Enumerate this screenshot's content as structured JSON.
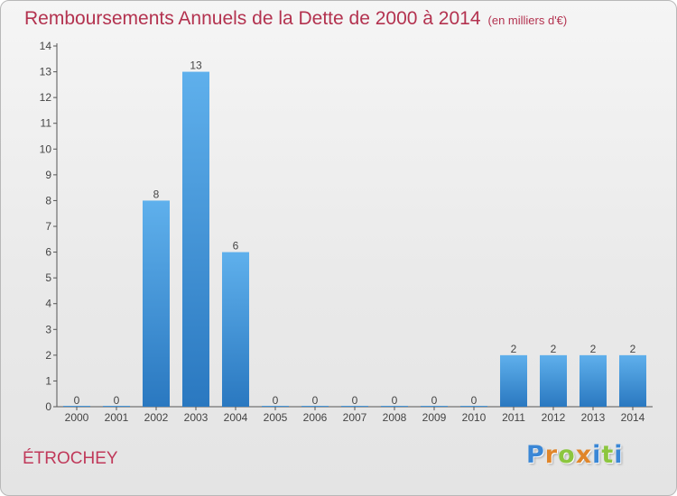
{
  "chart_data": {
    "type": "bar",
    "title": "Remboursements Annuels de la Dette de 2000 à 2014",
    "subtitle": "(en milliers d'€)",
    "categories": [
      "2000",
      "2001",
      "2002",
      "2003",
      "2004",
      "2005",
      "2006",
      "2007",
      "2008",
      "2009",
      "2010",
      "2011",
      "2012",
      "2013",
      "2014"
    ],
    "values": [
      0,
      0,
      8,
      13,
      6,
      0,
      0,
      0,
      0,
      0,
      0,
      2,
      2,
      2,
      2
    ],
    "ylim": [
      0,
      14
    ],
    "yticks": [
      0,
      1,
      2,
      3,
      4,
      5,
      6,
      7,
      8,
      9,
      10,
      11,
      12,
      13,
      14
    ],
    "grid": false,
    "bar_color": "#4a9ee0"
  },
  "commune": "ÉTROCHEY",
  "logo": {
    "letters": [
      {
        "ch": "P",
        "color": "#3a87d6"
      },
      {
        "ch": "r",
        "color": "#e0862a"
      },
      {
        "ch": "o",
        "color": "#8cc63f"
      },
      {
        "ch": "x",
        "color": "#e0862a"
      },
      {
        "ch": "i",
        "color": "#3a87d6"
      },
      {
        "ch": "t",
        "color": "#8cc63f"
      },
      {
        "ch": "i",
        "color": "#3a87d6"
      }
    ]
  }
}
